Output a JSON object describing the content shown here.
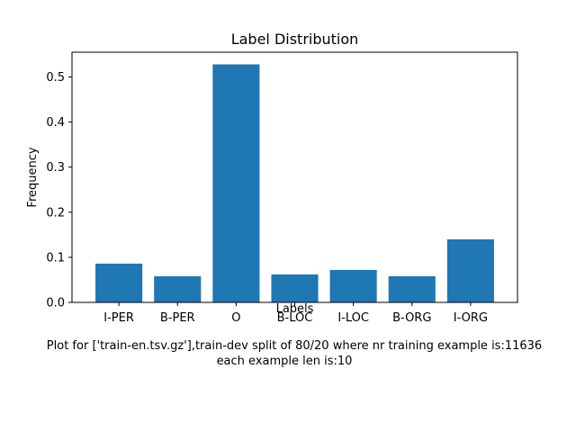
{
  "chart_data": {
    "type": "bar",
    "title": "Label Distribution",
    "xlabel": "Labels",
    "ylabel": "Frequency",
    "categories": [
      "I-PER",
      "B-PER",
      "O",
      "B-LOC",
      "I-LOC",
      "B-ORG",
      "I-ORG"
    ],
    "values": [
      0.086,
      0.058,
      0.528,
      0.062,
      0.072,
      0.058,
      0.14
    ],
    "ylim": [
      0,
      0.555
    ],
    "yticks": [
      0.0,
      0.1,
      0.2,
      0.3,
      0.4,
      0.5
    ],
    "ytick_labels": [
      "0.0",
      "0.1",
      "0.2",
      "0.3",
      "0.4",
      "0.5"
    ],
    "bar_color": "#1f77b4",
    "grid": false,
    "caption_lines": [
      "Plot for ['train-en.tsv.gz'],train-dev split of 80/20 where nr training example is:11636",
      "each example len is:10"
    ]
  }
}
